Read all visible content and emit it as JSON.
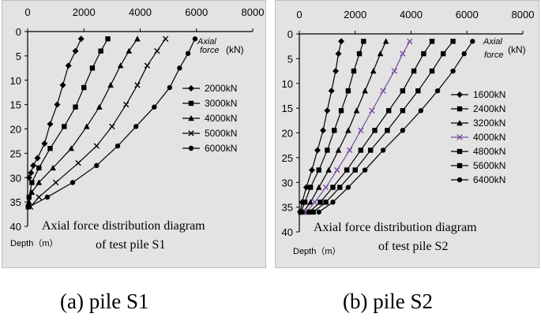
{
  "chart_data": [
    {
      "type": "line",
      "panel": "a",
      "caption": "(a) pile S1",
      "title_lines": [
        "Axial force distribution   diagram",
        "of test pile  S1"
      ],
      "xlabel_lines": [
        "Axial",
        "force"
      ],
      "xunit": "(kN)",
      "ylabel": "Depth（m）",
      "xlim": [
        0,
        8000
      ],
      "ylim": [
        0,
        40
      ],
      "xticks": [
        0,
        2000,
        4000,
        6000,
        8000
      ],
      "yticks": [
        0,
        5,
        10,
        15,
        20,
        25,
        30,
        35,
        40
      ],
      "legend_position": "right",
      "series": [
        {
          "name": "2000kN",
          "marker": "diamond",
          "points": [
            [
              1900,
              1.5
            ],
            [
              1700,
              4
            ],
            [
              1450,
              7
            ],
            [
              1250,
              11
            ],
            [
              1050,
              15
            ],
            [
              800,
              19
            ],
            [
              600,
              23
            ],
            [
              350,
              26
            ],
            [
              200,
              27.5
            ],
            [
              120,
              29
            ],
            [
              50,
              30
            ]
          ]
        },
        {
          "name": "3000kN",
          "marker": "square",
          "points": [
            [
              2850,
              1.5
            ],
            [
              2600,
              4
            ],
            [
              2300,
              7.5
            ],
            [
              2000,
              11.5
            ],
            [
              1700,
              15.5
            ],
            [
              1300,
              19.5
            ],
            [
              800,
              24
            ],
            [
              400,
              28
            ],
            [
              150,
              31
            ],
            [
              50,
              34
            ],
            [
              20,
              36
            ]
          ]
        },
        {
          "name": "4000kN",
          "marker": "triangle",
          "points": [
            [
              3900,
              1.5
            ],
            [
              3600,
              4
            ],
            [
              3300,
              7
            ],
            [
              2950,
              11
            ],
            [
              2550,
              15.5
            ],
            [
              2100,
              19.5
            ],
            [
              1550,
              24
            ],
            [
              900,
              28
            ],
            [
              400,
              31
            ],
            [
              150,
              33
            ],
            [
              50,
              35
            ]
          ]
        },
        {
          "name": "5000kN",
          "marker": "x",
          "points": [
            [
              4900,
              1.5
            ],
            [
              4600,
              4
            ],
            [
              4250,
              7
            ],
            [
              3900,
              11
            ],
            [
              3500,
              15
            ],
            [
              3000,
              19.5
            ],
            [
              2450,
              23.5
            ],
            [
              1800,
              27
            ],
            [
              1000,
              31
            ],
            [
              400,
              34
            ],
            [
              100,
              36
            ]
          ]
        },
        {
          "name": "6000kN",
          "marker": "circle",
          "points": [
            [
              5950,
              1.5
            ],
            [
              5700,
              4.5
            ],
            [
              5400,
              7.5
            ],
            [
              5050,
              11.5
            ],
            [
              4500,
              15.5
            ],
            [
              3850,
              19.5
            ],
            [
              3200,
              23.5
            ],
            [
              2450,
              27.5
            ],
            [
              1600,
              31
            ],
            [
              700,
              34
            ],
            [
              50,
              36
            ]
          ]
        }
      ]
    },
    {
      "type": "line",
      "panel": "b",
      "caption": "(b) pile S2",
      "title_lines": [
        "Axial  force distribution   diagram",
        "of test pile  S2"
      ],
      "xlabel_lines": [
        "Axial",
        "force"
      ],
      "xunit": "(kN)",
      "ylabel": "Depth（m）",
      "xlim": [
        0,
        8000
      ],
      "ylim": [
        0,
        40
      ],
      "xticks": [
        0,
        2000,
        4000,
        6000,
        8000
      ],
      "yticks": [
        0,
        5,
        10,
        15,
        20,
        25,
        30,
        35,
        40
      ],
      "legend_position": "right",
      "series": [
        {
          "name": "1600kN",
          "marker": "diamond",
          "points": [
            [
              1500,
              1.5
            ],
            [
              1400,
              4
            ],
            [
              1300,
              7.5
            ],
            [
              1150,
              11.5
            ],
            [
              1000,
              15.5
            ],
            [
              850,
              19.5
            ],
            [
              650,
              23.5
            ],
            [
              450,
              27.5
            ],
            [
              250,
              31
            ],
            [
              100,
              34
            ],
            [
              30,
              36
            ]
          ]
        },
        {
          "name": "2400kN",
          "marker": "square",
          "points": [
            [
              2300,
              1.5
            ],
            [
              2150,
              4
            ],
            [
              1950,
              7.5
            ],
            [
              1750,
              11.5
            ],
            [
              1500,
              15.5
            ],
            [
              1250,
              19.5
            ],
            [
              1000,
              23.5
            ],
            [
              700,
              27.5
            ],
            [
              400,
              31
            ],
            [
              200,
              34
            ],
            [
              50,
              36
            ]
          ]
        },
        {
          "name": "3200kN",
          "marker": "triangle",
          "points": [
            [
              3100,
              1.5
            ],
            [
              2900,
              4
            ],
            [
              2650,
              7.5
            ],
            [
              2350,
              11.5
            ],
            [
              2050,
              15.5
            ],
            [
              1750,
              19.5
            ],
            [
              1400,
              23.5
            ],
            [
              1050,
              27.5
            ],
            [
              700,
              31
            ],
            [
              400,
              34
            ],
            [
              150,
              36
            ]
          ]
        },
        {
          "name": "4000kN",
          "marker": "x",
          "color": "#7a4aa0",
          "points": [
            [
              3950,
              1.5
            ],
            [
              3700,
              4
            ],
            [
              3400,
              7.5
            ],
            [
              3000,
              11.5
            ],
            [
              2600,
              15.5
            ],
            [
              2200,
              19.5
            ],
            [
              1800,
              23.5
            ],
            [
              1350,
              27.5
            ],
            [
              950,
              31
            ],
            [
              550,
              34
            ],
            [
              250,
              36
            ]
          ]
        },
        {
          "name": "4800kN",
          "marker": "square",
          "points": [
            [
              4750,
              1.5
            ],
            [
              4450,
              4
            ],
            [
              4100,
              7.5
            ],
            [
              3700,
              11.5
            ],
            [
              3200,
              15.5
            ],
            [
              2700,
              19.5
            ],
            [
              2200,
              23.5
            ],
            [
              1700,
              27.5
            ],
            [
              1200,
              31
            ],
            [
              750,
              34
            ],
            [
              350,
              36
            ]
          ]
        },
        {
          "name": "5600kN",
          "marker": "square",
          "points": [
            [
              5500,
              1.5
            ],
            [
              5150,
              4
            ],
            [
              4750,
              7.5
            ],
            [
              4250,
              11.5
            ],
            [
              3700,
              15.5
            ],
            [
              3150,
              19.5
            ],
            [
              2550,
              23.5
            ],
            [
              2000,
              27.5
            ],
            [
              1450,
              31
            ],
            [
              950,
              34
            ],
            [
              500,
              36
            ]
          ]
        },
        {
          "name": "6400kN",
          "marker": "circle",
          "points": [
            [
              6200,
              1.5
            ],
            [
              5900,
              4
            ],
            [
              5500,
              7.5
            ],
            [
              4950,
              11.5
            ],
            [
              4350,
              15.5
            ],
            [
              3700,
              19.5
            ],
            [
              3000,
              23.5
            ],
            [
              2350,
              27.5
            ],
            [
              1750,
              31
            ],
            [
              1200,
              34
            ],
            [
              700,
              36
            ]
          ]
        }
      ]
    }
  ]
}
